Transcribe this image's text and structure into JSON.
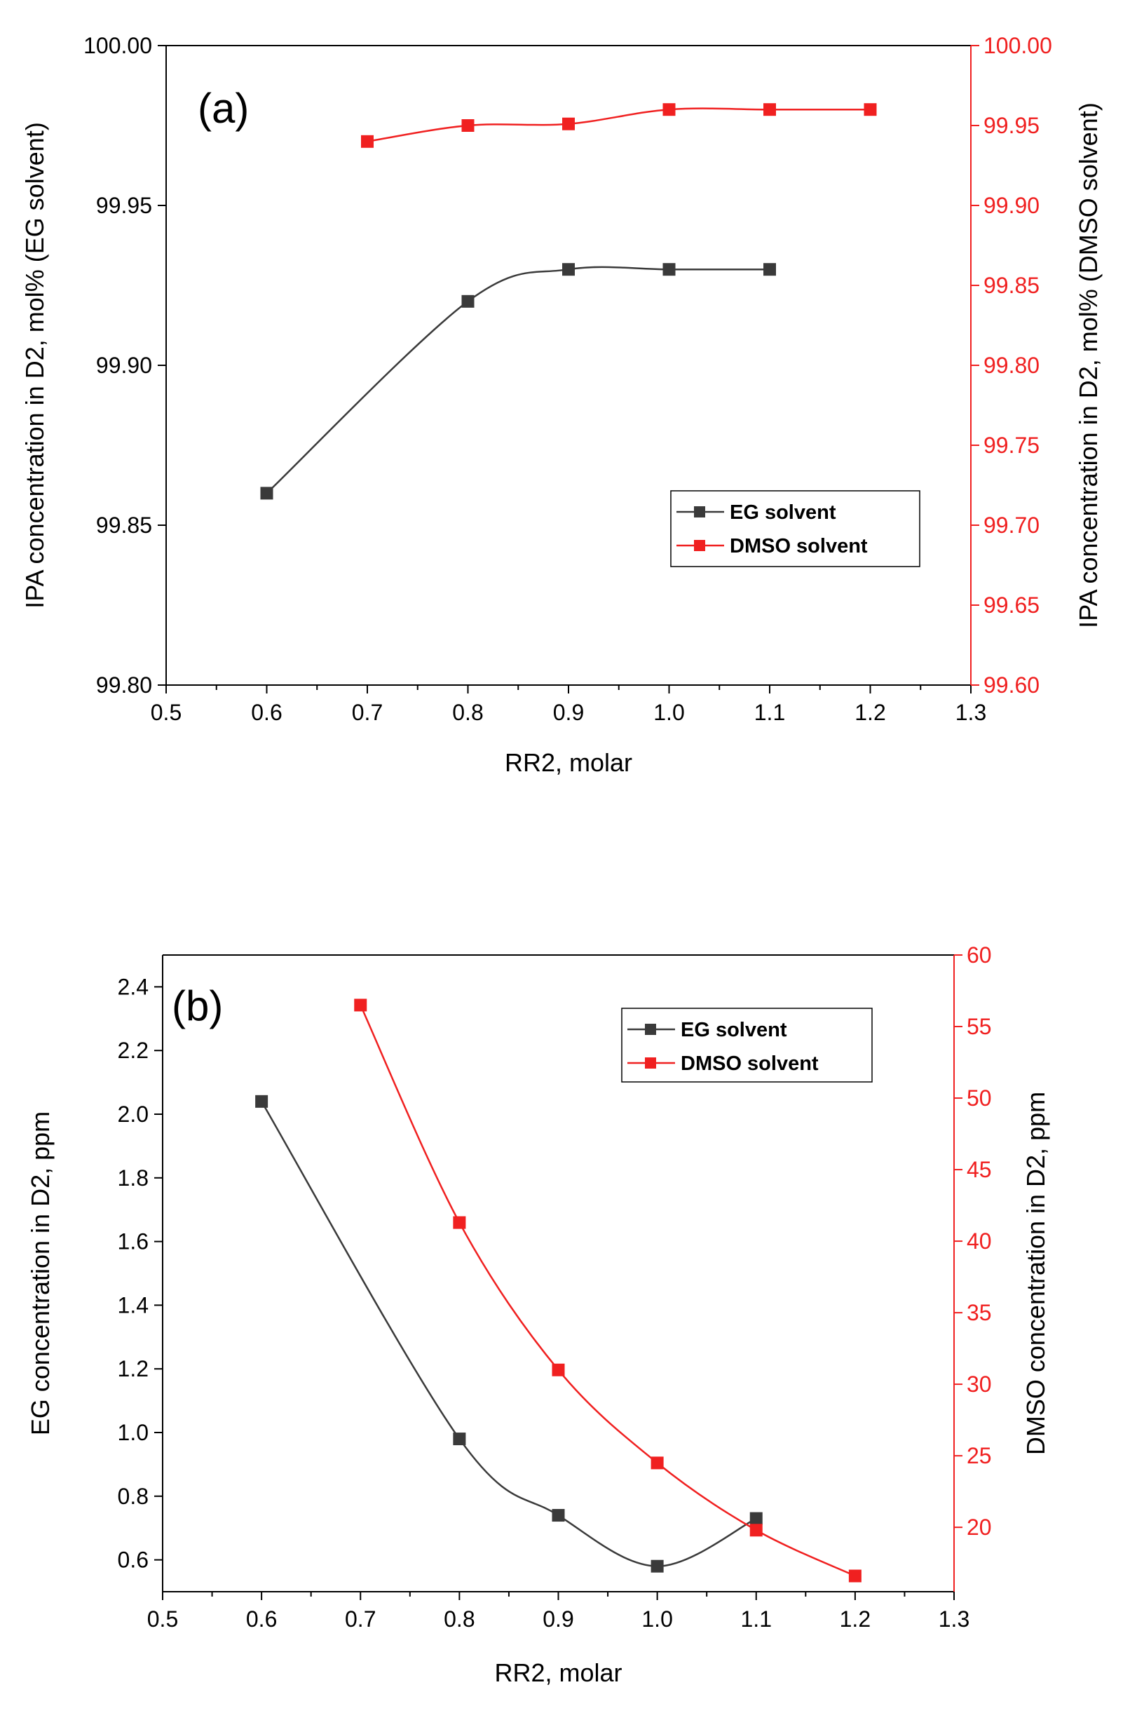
{
  "chart_data": [
    {
      "type": "line",
      "panel_label": "(a)",
      "xlabel": "RR2, molar",
      "ylabel_left": "IPA concentration in D2, mol% (EG solvent)",
      "ylabel_right": "IPA concentration in D2, mol% (DMSO solvent)",
      "xlim": [
        0.5,
        1.3
      ],
      "ylim_left": [
        99.8,
        100.0
      ],
      "ylim_right": [
        99.6,
        100.0
      ],
      "x_ticks": [
        "0.5",
        "0.6",
        "0.7",
        "0.8",
        "0.9",
        "1.0",
        "1.1",
        "1.2",
        "1.3"
      ],
      "y_ticks_left": [
        "99.80",
        "99.85",
        "99.90",
        "99.95",
        "100.00"
      ],
      "y_ticks_right": [
        "99.60",
        "99.65",
        "99.70",
        "99.75",
        "99.80",
        "99.85",
        "99.90",
        "99.95",
        "100.00"
      ],
      "legend_position": "center-right",
      "series": [
        {
          "name": "EG solvent",
          "axis": "left",
          "color": "#3a3a3a",
          "x": [
            0.6,
            0.8,
            0.9,
            1.0,
            1.1
          ],
          "values": [
            99.86,
            99.92,
            99.93,
            99.93,
            99.93
          ]
        },
        {
          "name": "DMSO solvent",
          "axis": "right",
          "color": "#f02020",
          "x": [
            0.7,
            0.8,
            0.9,
            1.0,
            1.1,
            1.2
          ],
          "values": [
            99.94,
            99.95,
            99.951,
            99.96,
            99.96,
            99.96
          ]
        }
      ]
    },
    {
      "type": "line",
      "panel_label": "(b)",
      "xlabel": "RR2, molar",
      "ylabel_left": "EG concentration in D2, ppm",
      "ylabel_right": "DMSO concentration in D2, ppm",
      "xlim": [
        0.5,
        1.3
      ],
      "ylim_left": [
        0.5,
        2.5
      ],
      "ylim_right": [
        15.5,
        60
      ],
      "x_ticks": [
        "0.5",
        "0.6",
        "0.7",
        "0.8",
        "0.9",
        "1.0",
        "1.1",
        "1.2",
        "1.3"
      ],
      "y_ticks_left": [
        "0.6",
        "0.8",
        "1.0",
        "1.2",
        "1.4",
        "1.6",
        "1.8",
        "2.0",
        "2.2",
        "2.4"
      ],
      "y_ticks_right": [
        "20",
        "25",
        "30",
        "35",
        "40",
        "45",
        "50",
        "55",
        "60"
      ],
      "legend_position": "top-right",
      "series": [
        {
          "name": "EG solvent",
          "axis": "left",
          "color": "#3a3a3a",
          "x": [
            0.6,
            0.8,
            0.9,
            1.0,
            1.1
          ],
          "values": [
            2.04,
            0.98,
            0.74,
            0.58,
            0.73
          ]
        },
        {
          "name": "DMSO solvent",
          "axis": "right",
          "color": "#f02020",
          "x": [
            0.7,
            0.8,
            0.9,
            1.0,
            1.1,
            1.2
          ],
          "values": [
            56.5,
            41.3,
            31.0,
            24.5,
            19.8,
            16.6
          ]
        }
      ]
    }
  ]
}
